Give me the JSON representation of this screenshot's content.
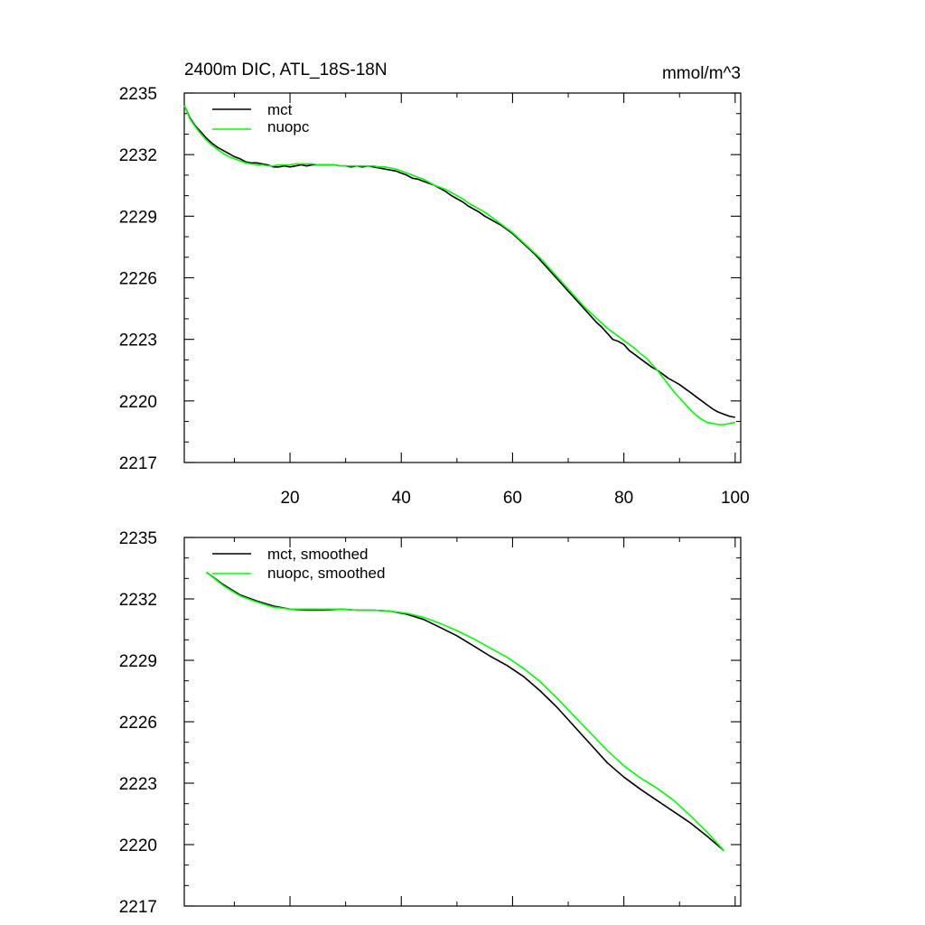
{
  "chart_data": [
    {
      "type": "line",
      "title": "2400m DIC, ATL_18S-18N",
      "units_label": "mmol/m^3",
      "xlim": [
        1,
        101
      ],
      "ylim": [
        2217,
        2235
      ],
      "x_ticks": [
        20,
        40,
        60,
        80,
        100
      ],
      "x_tick_labels": [
        "20",
        "40",
        "60",
        "80",
        "100"
      ],
      "y_ticks": [
        2217,
        2220,
        2223,
        2226,
        2229,
        2232,
        2235
      ],
      "y_tick_labels": [
        "2217",
        "2220",
        "2223",
        "2226",
        "2229",
        "2232",
        "2235"
      ],
      "legend_position": "top-left",
      "series": [
        {
          "name": "mct",
          "color": "#000000",
          "x": [
            1,
            2,
            3,
            4,
            5,
            6,
            7,
            8,
            9,
            10,
            11,
            12,
            13,
            14,
            15,
            16,
            17,
            18,
            19,
            20,
            21,
            22,
            23,
            24,
            25,
            26,
            27,
            28,
            29,
            30,
            31,
            32,
            33,
            34,
            35,
            36,
            37,
            38,
            39,
            40,
            41,
            42,
            43,
            44,
            45,
            46,
            47,
            48,
            49,
            50,
            51,
            52,
            53,
            54,
            55,
            56,
            57,
            58,
            59,
            60,
            61,
            62,
            63,
            64,
            65,
            66,
            67,
            68,
            69,
            70,
            71,
            72,
            73,
            74,
            75,
            76,
            77,
            78,
            79,
            80,
            81,
            82,
            83,
            84,
            85,
            86,
            87,
            88,
            89,
            90,
            91,
            92,
            93,
            94,
            95,
            96,
            97,
            98,
            99,
            100
          ],
          "values": [
            2234.4,
            2233.8,
            2233.4,
            2233.1,
            2232.8,
            2232.55,
            2232.35,
            2232.2,
            2232.05,
            2231.9,
            2231.8,
            2231.65,
            2231.6,
            2231.6,
            2231.55,
            2231.5,
            2231.4,
            2231.4,
            2231.45,
            2231.4,
            2231.45,
            2231.5,
            2231.45,
            2231.5,
            2231.5,
            2231.5,
            2231.5,
            2231.5,
            2231.45,
            2231.45,
            2231.4,
            2231.45,
            2231.4,
            2231.45,
            2231.4,
            2231.35,
            2231.3,
            2231.25,
            2231.2,
            2231.1,
            2231.0,
            2230.85,
            2230.8,
            2230.7,
            2230.6,
            2230.5,
            2230.35,
            2230.2,
            2230.0,
            2229.85,
            2229.7,
            2229.5,
            2229.35,
            2229.2,
            2229.0,
            2228.85,
            2228.7,
            2228.55,
            2228.35,
            2228.15,
            2227.9,
            2227.65,
            2227.4,
            2227.15,
            2226.85,
            2226.55,
            2226.25,
            2225.95,
            2225.65,
            2225.35,
            2225.05,
            2224.75,
            2224.45,
            2224.15,
            2223.85,
            2223.6,
            2223.3,
            2223.0,
            2222.9,
            2222.75,
            2222.45,
            2222.25,
            2222.05,
            2221.85,
            2221.65,
            2221.5,
            2221.3,
            2221.1,
            2220.95,
            2220.8,
            2220.6,
            2220.4,
            2220.2,
            2220.0,
            2219.8,
            2219.6,
            2219.45,
            2219.35,
            2219.25,
            2219.2
          ]
        },
        {
          "name": "nuopc",
          "color": "#00ff00",
          "x": [
            1,
            2,
            3,
            4,
            5,
            6,
            7,
            8,
            9,
            10,
            11,
            12,
            13,
            14,
            15,
            16,
            17,
            18,
            19,
            20,
            21,
            22,
            23,
            24,
            25,
            26,
            27,
            28,
            29,
            30,
            31,
            32,
            33,
            34,
            35,
            36,
            37,
            38,
            39,
            40,
            41,
            42,
            43,
            44,
            45,
            46,
            47,
            48,
            49,
            50,
            51,
            52,
            53,
            54,
            55,
            56,
            57,
            58,
            59,
            60,
            61,
            62,
            63,
            64,
            65,
            66,
            67,
            68,
            69,
            70,
            71,
            72,
            73,
            74,
            75,
            76,
            77,
            78,
            79,
            80,
            81,
            82,
            83,
            84,
            85,
            86,
            87,
            88,
            89,
            90,
            91,
            92,
            93,
            94,
            95,
            96,
            97,
            98,
            99,
            100
          ],
          "values": [
            2234.4,
            2233.75,
            2233.35,
            2233.0,
            2232.7,
            2232.45,
            2232.25,
            2232.05,
            2231.9,
            2231.8,
            2231.7,
            2231.6,
            2231.55,
            2231.5,
            2231.5,
            2231.45,
            2231.45,
            2231.5,
            2231.5,
            2231.5,
            2231.55,
            2231.55,
            2231.55,
            2231.55,
            2231.5,
            2231.5,
            2231.5,
            2231.5,
            2231.45,
            2231.45,
            2231.45,
            2231.45,
            2231.45,
            2231.45,
            2231.45,
            2231.4,
            2231.4,
            2231.35,
            2231.3,
            2231.2,
            2231.1,
            2231.0,
            2230.9,
            2230.8,
            2230.65,
            2230.5,
            2230.4,
            2230.3,
            2230.15,
            2230.0,
            2229.85,
            2229.65,
            2229.5,
            2229.35,
            2229.2,
            2229.0,
            2228.8,
            2228.6,
            2228.4,
            2228.2,
            2227.95,
            2227.7,
            2227.45,
            2227.2,
            2226.95,
            2226.65,
            2226.35,
            2226.05,
            2225.75,
            2225.45,
            2225.15,
            2224.85,
            2224.55,
            2224.3,
            2224.05,
            2223.8,
            2223.55,
            2223.35,
            2223.15,
            2222.95,
            2222.75,
            2222.55,
            2222.3,
            2222.1,
            2221.8,
            2221.5,
            2221.15,
            2220.8,
            2220.45,
            2220.15,
            2219.85,
            2219.55,
            2219.3,
            2219.1,
            2218.95,
            2218.9,
            2218.85,
            2218.85,
            2218.9,
            2218.95
          ]
        }
      ]
    },
    {
      "type": "line",
      "title": "",
      "xlim": [
        1,
        101
      ],
      "ylim": [
        2217,
        2235
      ],
      "x_ticks": [
        20,
        40,
        60,
        80,
        100
      ],
      "x_tick_labels": [],
      "y_ticks": [
        2217,
        2220,
        2223,
        2226,
        2229,
        2232,
        2235
      ],
      "y_tick_labels": [
        "2217",
        "2220",
        "2223",
        "2226",
        "2229",
        "2232",
        "2235"
      ],
      "legend_position": "top-left",
      "series": [
        {
          "name": "mct, smoothed",
          "color": "#000000",
          "x": [
            5,
            8,
            11,
            14,
            17,
            20,
            23,
            26,
            29,
            32,
            35,
            38,
            41,
            44,
            47,
            50,
            53,
            56,
            59,
            62,
            65,
            68,
            71,
            74,
            77,
            80,
            83,
            86,
            89,
            92,
            95,
            98
          ],
          "values": [
            2233.3,
            2232.7,
            2232.2,
            2231.9,
            2231.65,
            2231.5,
            2231.45,
            2231.45,
            2231.5,
            2231.45,
            2231.45,
            2231.4,
            2231.25,
            2231.0,
            2230.6,
            2230.2,
            2229.7,
            2229.2,
            2228.75,
            2228.2,
            2227.5,
            2226.7,
            2225.8,
            2224.9,
            2224.0,
            2223.3,
            2222.7,
            2222.15,
            2221.6,
            2221.05,
            2220.4,
            2219.7
          ]
        },
        {
          "name": "nuopc, smoothed",
          "color": "#00ff00",
          "x": [
            5,
            8,
            11,
            14,
            17,
            20,
            23,
            26,
            29,
            32,
            35,
            38,
            41,
            44,
            47,
            50,
            53,
            56,
            59,
            62,
            65,
            68,
            71,
            74,
            77,
            80,
            83,
            86,
            89,
            92,
            95,
            98
          ],
          "values": [
            2233.3,
            2232.65,
            2232.15,
            2231.85,
            2231.6,
            2231.5,
            2231.5,
            2231.5,
            2231.5,
            2231.45,
            2231.45,
            2231.4,
            2231.3,
            2231.1,
            2230.8,
            2230.45,
            2230.05,
            2229.6,
            2229.15,
            2228.6,
            2227.95,
            2227.15,
            2226.3,
            2225.45,
            2224.6,
            2223.85,
            2223.25,
            2222.75,
            2222.15,
            2221.4,
            2220.6,
            2219.7
          ]
        }
      ]
    }
  ]
}
